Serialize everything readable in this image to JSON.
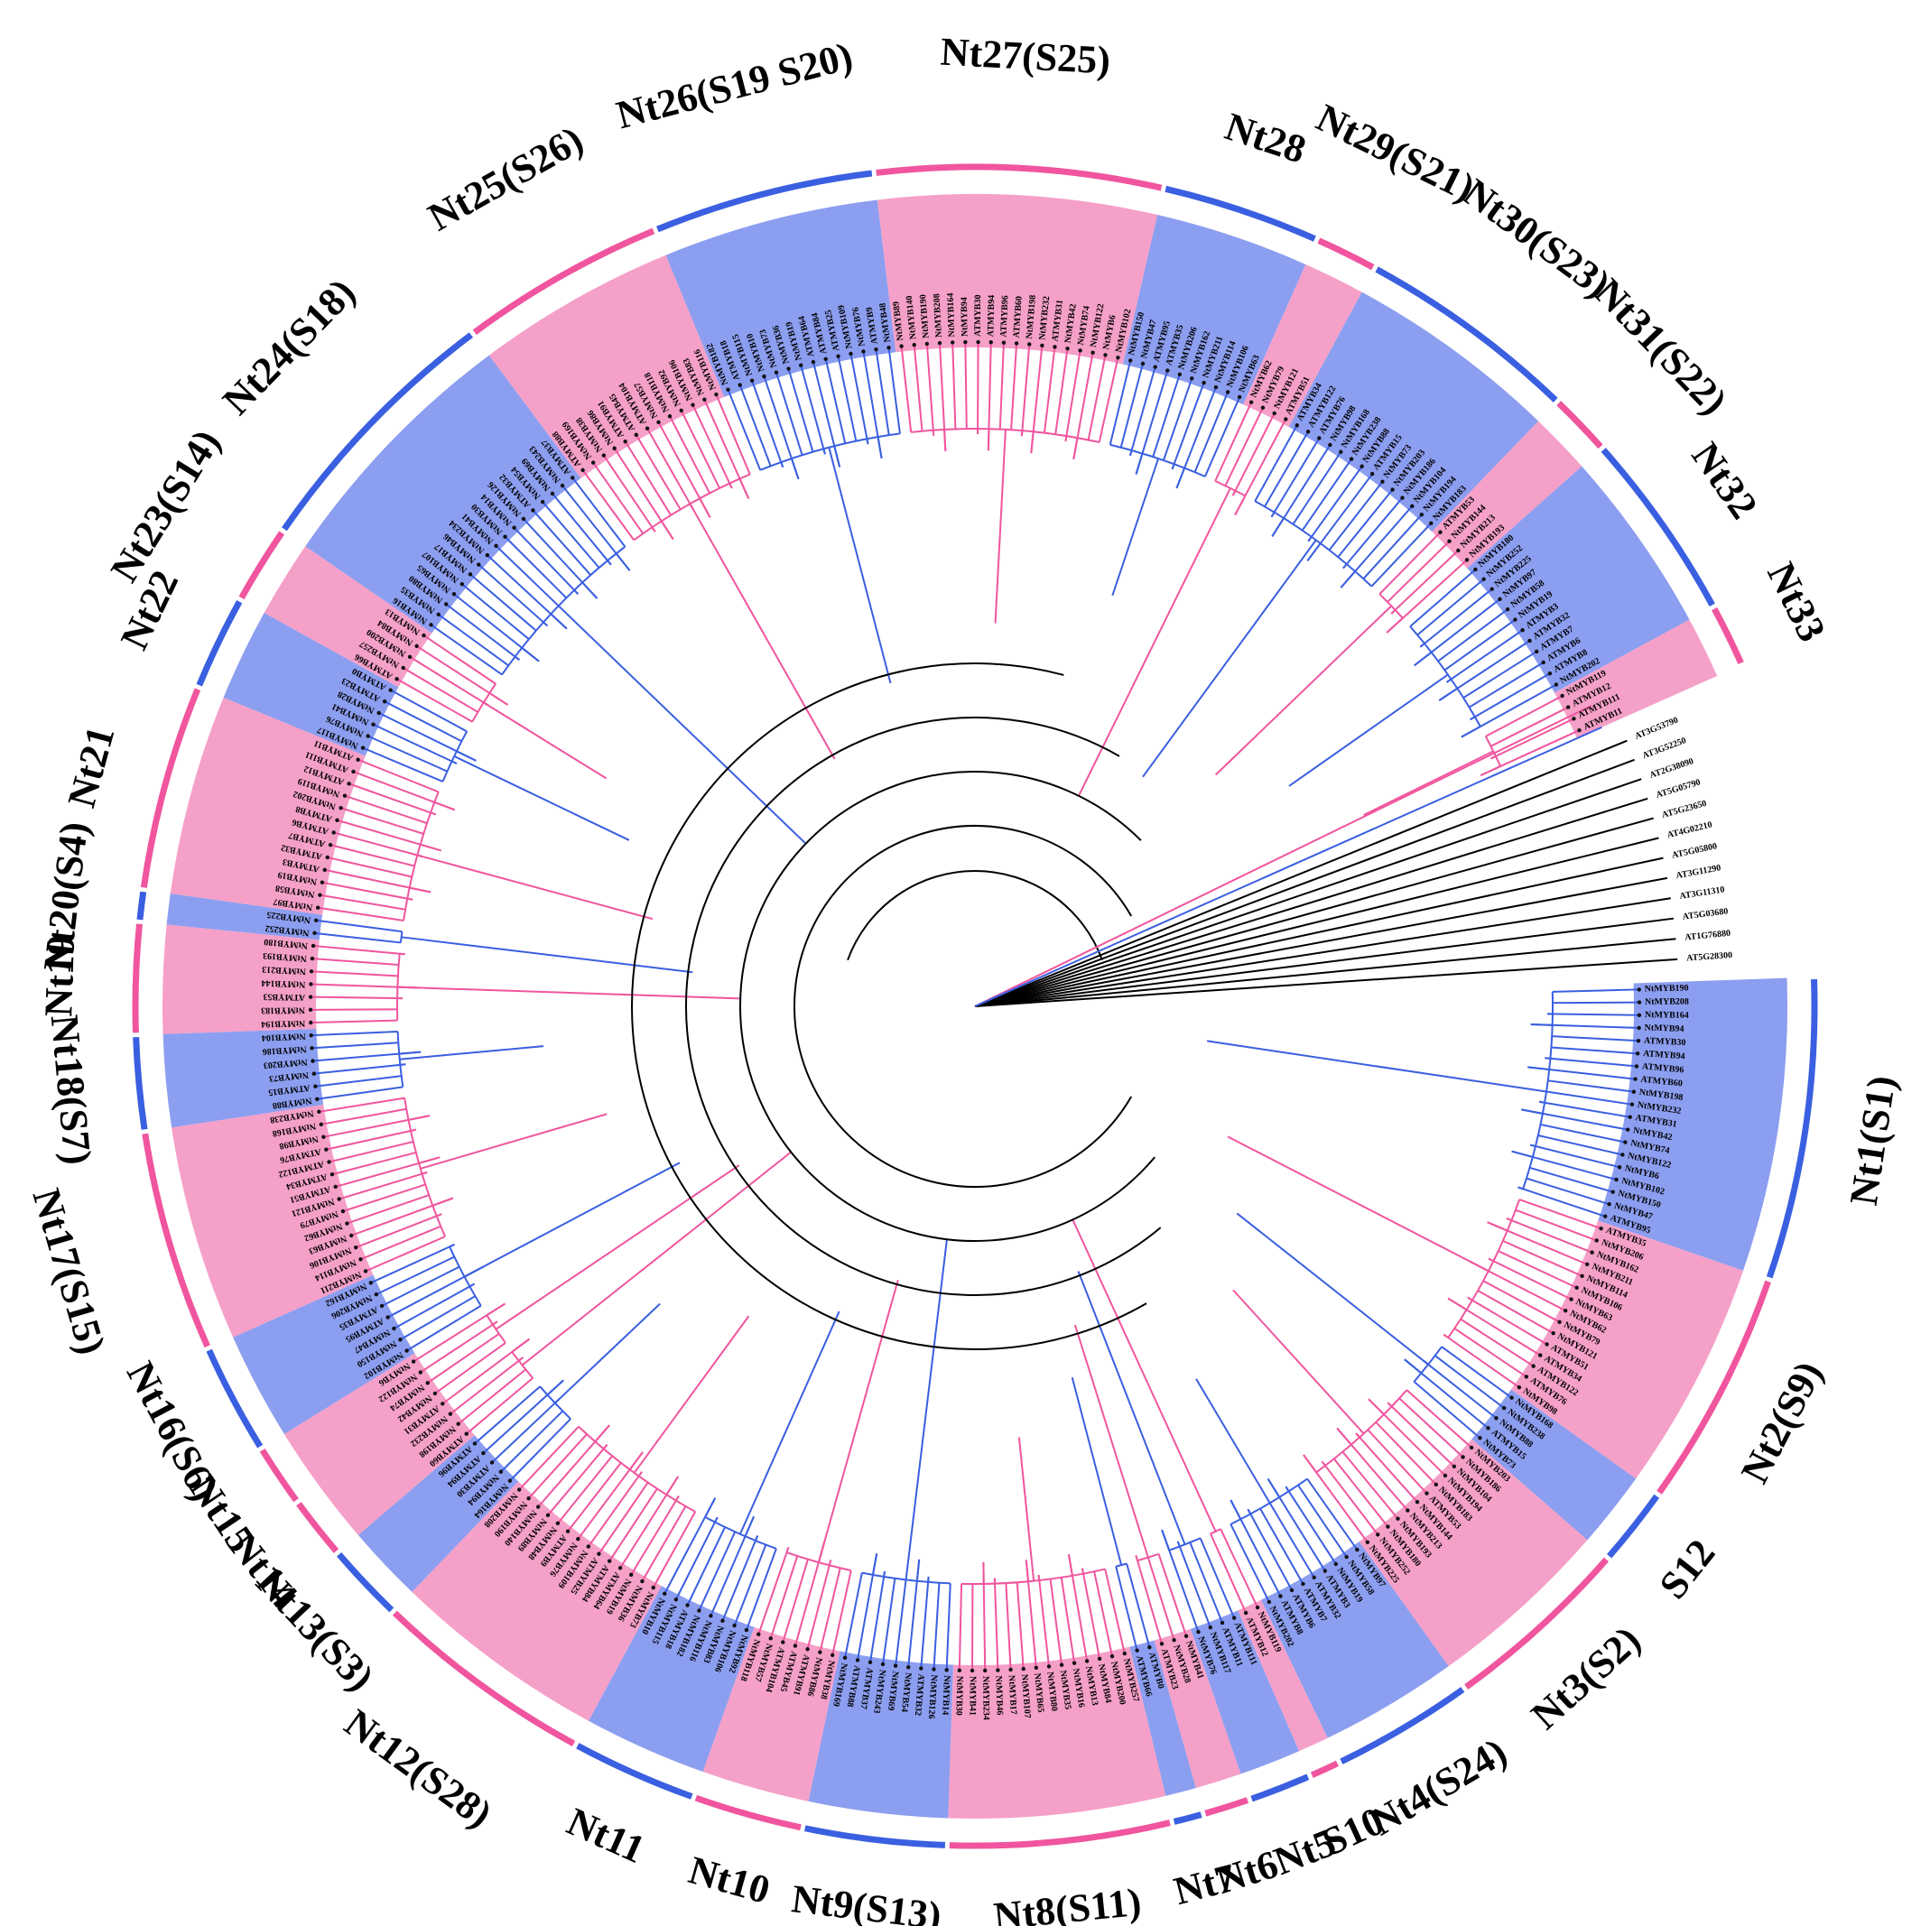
{
  "colors": {
    "pink_fill": "#f5a0c8",
    "pink_strong": "#f0559e",
    "blue_fill": "#8c9ef0",
    "blue_strong": "#3a5fe0",
    "outgroup": "#000000",
    "background": "#ffffff"
  },
  "clades": [
    {
      "label": "Nt1(S1)",
      "color": "blue",
      "size": 19
    },
    {
      "label": "Nt2(S9)",
      "color": "pink",
      "size": 15
    },
    {
      "label": "S12",
      "color": "blue",
      "size": 5
    },
    {
      "label": "Nt3(S2)",
      "color": "pink",
      "size": 12
    },
    {
      "label": "Nt4(S24)",
      "color": "blue",
      "size": 9
    },
    {
      "label": "S10",
      "color": "pink",
      "size": 2
    },
    {
      "label": "Nt5",
      "color": "blue",
      "size": 4
    },
    {
      "label": "Nt6",
      "color": "pink",
      "size": 3
    },
    {
      "label": "Nt7",
      "color": "blue",
      "size": 2
    },
    {
      "label": "Nt8(S11)",
      "color": "pink",
      "size": 14
    },
    {
      "label": "Nt9(S13)",
      "color": "blue",
      "size": 9
    },
    {
      "label": "Nt10",
      "color": "pink",
      "size": 7
    },
    {
      "label": "Nt11",
      "color": "blue",
      "size": 8
    },
    {
      "label": "Nt12(S28)",
      "color": "pink",
      "size": 14
    },
    {
      "label": "Nt13(S3)",
      "color": "blue",
      "size": 5
    },
    {
      "label": "Nt14",
      "color": "pink",
      "size": 4
    },
    {
      "label": "Nt15",
      "color": "pink",
      "size": 4
    },
    {
      "label": "Nt16(S6)",
      "color": "blue",
      "size": 7
    },
    {
      "label": "Nt17(S15)",
      "color": "pink",
      "size": 14
    },
    {
      "label": "Nt18(S7)",
      "color": "blue",
      "size": 6
    },
    {
      "label": "Nt19",
      "color": "pink",
      "size": 7
    },
    {
      "label": "Nt20(S4)",
      "color": "blue",
      "size": 2
    },
    {
      "label": "Nt21",
      "color": "pink",
      "size": 13
    },
    {
      "label": "Nt22",
      "color": "blue",
      "size": 6
    },
    {
      "label": "Nt23(S14)",
      "color": "pink",
      "size": 5
    },
    {
      "label": "Nt24(S18)",
      "color": "blue",
      "size": 17
    },
    {
      "label": "Nt25(S26)",
      "color": "pink",
      "size": 13
    },
    {
      "label": "Nt26(S19 S20)",
      "color": "blue",
      "size": 14
    },
    {
      "label": "Nt27(S25)",
      "color": "pink",
      "size": 18
    },
    {
      "label": "Nt28",
      "color": "blue",
      "size": 10
    },
    {
      "label": "Nt29(S21)",
      "color": "pink",
      "size": 4
    },
    {
      "label": "Nt30(S23)",
      "color": "blue",
      "size": 14
    },
    {
      "label": "Nt31(S22)",
      "color": "pink",
      "size": 4
    },
    {
      "label": "Nt32",
      "color": "blue",
      "size": 12
    },
    {
      "label": "Nt33",
      "color": "pink",
      "size": 4
    }
  ],
  "outgroup_leaves": [
    "AT3G53790",
    "AT3G52250",
    "AT2G38090",
    "AT5G05790",
    "AT5G23650",
    "AT4G02210",
    "AT5G05800",
    "AT3G11290",
    "AT3G11310",
    "AT5G03680",
    "AT1G76880",
    "AT5G28300"
  ],
  "sample_leaves": [
    "NtMYB190",
    "NtMYB208",
    "NtMYB164",
    "NtMYB94",
    "ATMYB30",
    "ATMYB94",
    "ATMYB96",
    "ATMYB60",
    "NtMYB198",
    "NtMYB232",
    "ATMYB31",
    "NtMYB42",
    "NtMYB74",
    "NtMYB122",
    "NtMYB6",
    "NtMYB102",
    "NtMYB150",
    "NtMYB47",
    "ATMYB95",
    "ATMYB35",
    "NtMYB206",
    "NtMYB162",
    "NtMYB211",
    "NtMYB114",
    "NtMYB106",
    "NtMYB63",
    "NtMYB62",
    "NtMYB79",
    "NtMYB121",
    "ATMYB51",
    "ATMYB34",
    "ATMYB122",
    "ATMYB76",
    "NtMYB98",
    "NtMYB168",
    "NtMYB238",
    "NtMYB88",
    "ATMYB15",
    "NtMYB73",
    "NtMYB203",
    "NtMYB186",
    "NtMYB104",
    "NtMYB194",
    "NtMYB183",
    "ATMYB53",
    "NtMYB144",
    "NtMYB213",
    "NtMYB193",
    "NtMYB180",
    "NtMYB252",
    "NtMYB225",
    "NtMYB97",
    "NtMYB58",
    "NtMYB19",
    "ATMYB3",
    "ATMYB32",
    "ATMYB7",
    "ATMYB6",
    "ATMYB8",
    "NtMYB202",
    "NtMYB119",
    "ATMYB12",
    "ATMYB111",
    "ATMYB11",
    "NtMYB117",
    "NtMYB76",
    "NtMYB41",
    "NtMYB28",
    "ATMYB23",
    "ATMYB0",
    "ATMYB66",
    "NtMYB257",
    "NtMYB200",
    "NtMYB84",
    "NtMYB13",
    "NtMYB16",
    "NtMYB35",
    "NtMYB80",
    "NtMYB65",
    "NtMYB107",
    "NtMYB17",
    "NtMYB46",
    "NtMYB234",
    "NtMYB41",
    "NtMYB30",
    "NtMYB14",
    "NtMYB126",
    "ATMYB32",
    "NtMYB54",
    "NtMYB69",
    "NtMYB243",
    "ATMYB37",
    "ATMYB88",
    "NtMYB169",
    "NtMYB38",
    "NtMYB86",
    "ATMYB91",
    "ATMYB45",
    "ATMYB104",
    "NtMYB57",
    "NtMYB118",
    "NtMYB92",
    "NtMYB106",
    "NtMYB83",
    "NtMYB116",
    "NtMYB182",
    "ATMYB18",
    "NtMYB115",
    "NtMYB10",
    "NtMYB73",
    "NtMYB36",
    "NtMYB19",
    "ATMYB64",
    "ATMYB84",
    "ATMYB25",
    "NtMYB109",
    "NtMYB76",
    "ATMYB9",
    "NtMYB48",
    "NtMYB89",
    "NtMYB140"
  ]
}
